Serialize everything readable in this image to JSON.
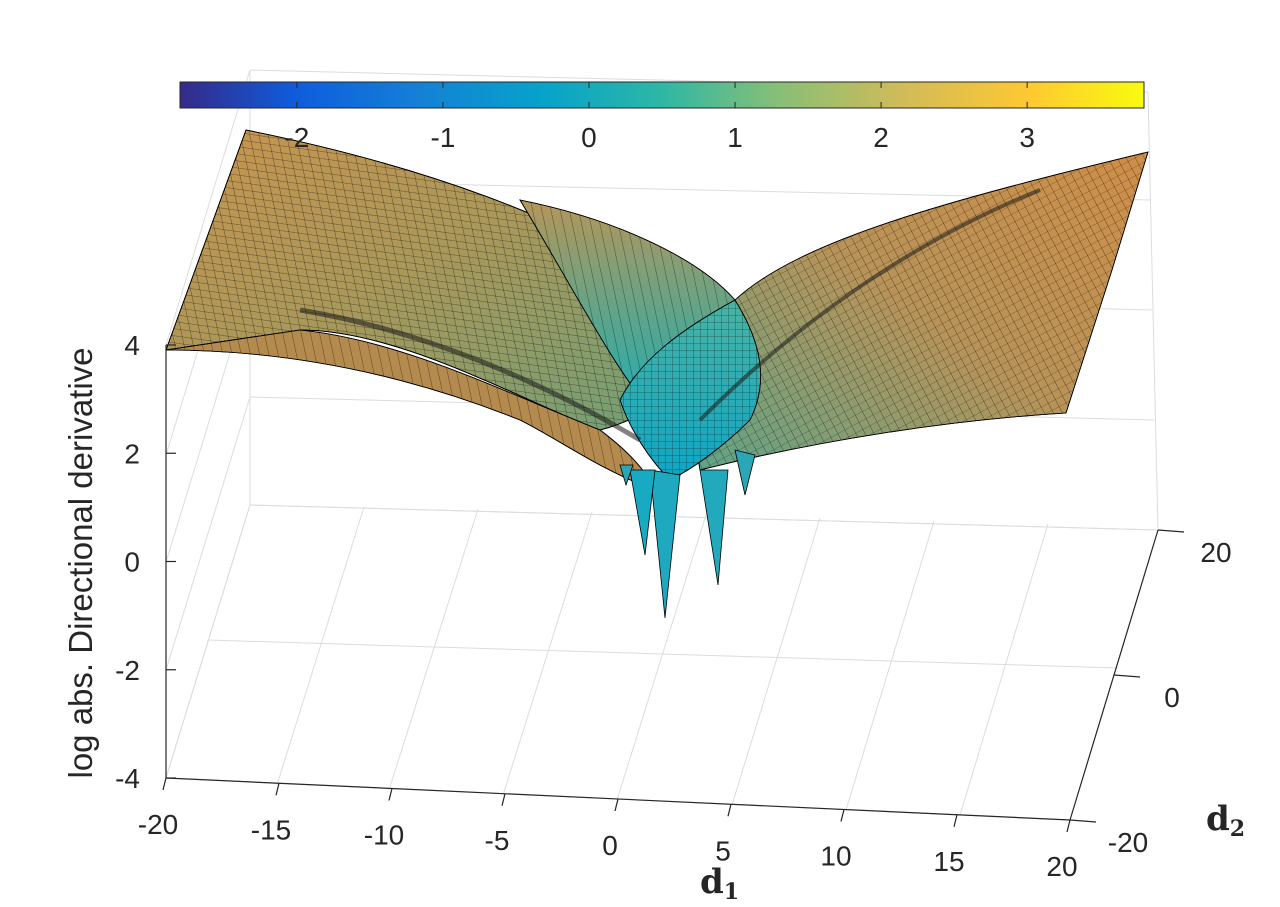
{
  "chart_data": {
    "type": "surface",
    "zlabel": "log abs. Directional derivative",
    "xlabel": {
      "var": "d",
      "sub": "1"
    },
    "ylabel": {
      "var": "d",
      "sub": "2"
    },
    "xlim": [
      -20,
      20
    ],
    "ylim": [
      -20,
      20
    ],
    "zlim": [
      -4,
      4
    ],
    "x_ticks": [
      "-20",
      "-15",
      "-10",
      "-5",
      "0",
      "5",
      "10",
      "15",
      "20"
    ],
    "y_ticks": [
      "-20",
      "0",
      "20"
    ],
    "z_ticks": [
      "-4",
      "-2",
      "0",
      "2",
      "4"
    ],
    "colorbar": {
      "colormap": "parula",
      "range": [
        -2.8,
        3.8
      ],
      "ticks": [
        "-2",
        "-1",
        "0",
        "1",
        "2",
        "3"
      ]
    },
    "surface_samples": [
      {
        "d1": -20,
        "d2": 20,
        "z": 4.7
      },
      {
        "d1": -20,
        "d2": -20,
        "z": 4.0
      },
      {
        "d1": 20,
        "d2": 20,
        "z": 4.5
      },
      {
        "d1": 20,
        "d2": -20,
        "z": 3.0
      },
      {
        "d1": 0,
        "d2": 0,
        "z": 2.0
      },
      {
        "d1": 3,
        "d2": 0,
        "z": -3.5
      },
      {
        "d1": 5,
        "d2": 2,
        "z": -2.5
      }
    ],
    "grid": true,
    "colors": {
      "edge": "#000000",
      "grid": "#dedede",
      "axis": "#262626"
    }
  }
}
